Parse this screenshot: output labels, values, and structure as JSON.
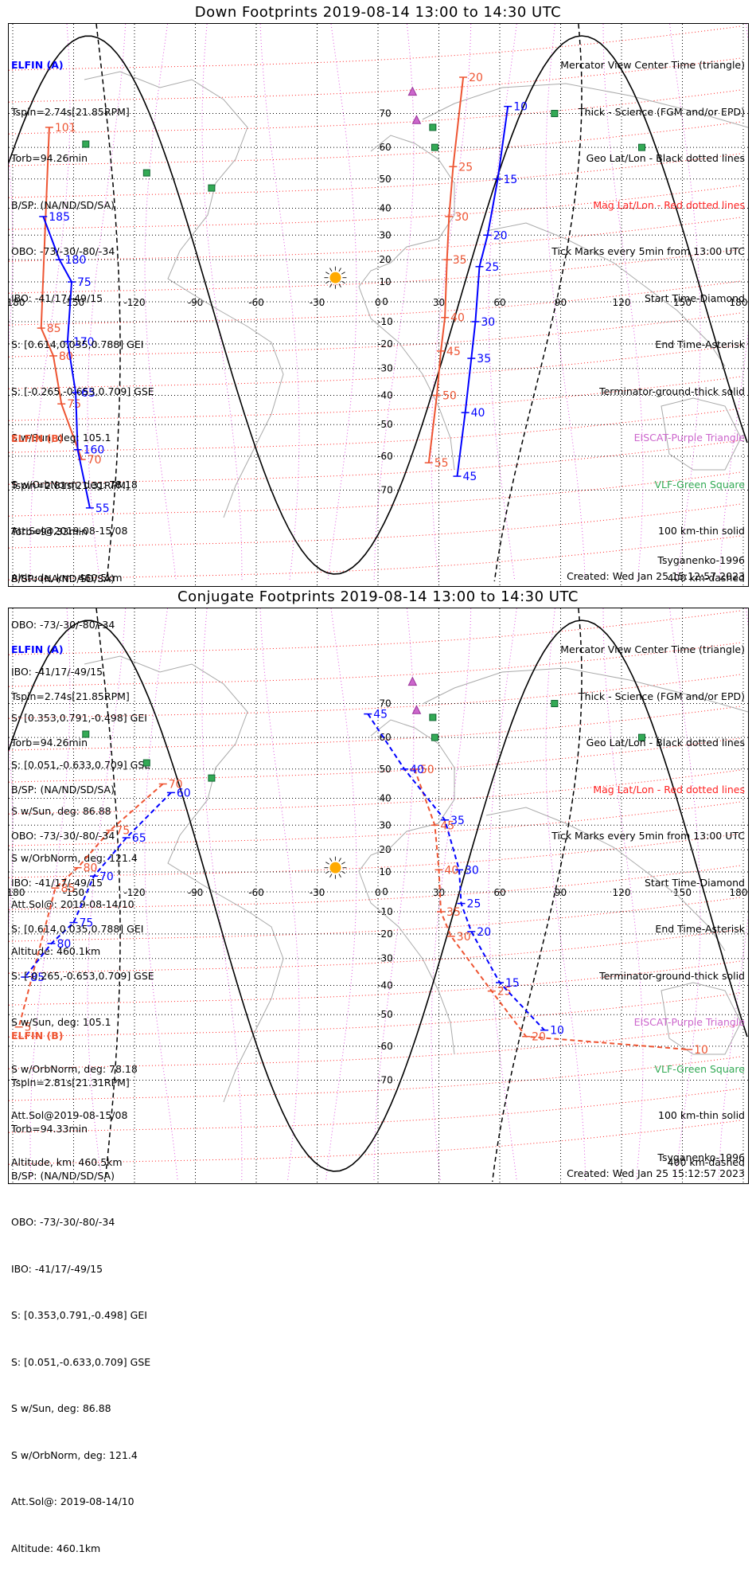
{
  "panels": [
    {
      "id": "down",
      "title": "Down Footprints 2019-08-14 13:00 to 14:30 UTC",
      "elfin_a": {
        "name": "ELFIN (A)",
        "lines": [
          "Tspin=2.74s[21.85RPM]",
          "Torb=94.26min",
          "B/SP: (NA/ND/SD/SA)",
          "OBO: -73/-30/-80/-34",
          "IBO: -41/17/-49/15",
          "S: [0.614,0.035,0.788] GEI",
          "S: [-0.265,-0.653,0.709] GSE",
          "S w/Sun, deg: 105.1",
          "S w/OrbNorm, deg: 78.18",
          "Att.Sol@2019-08-15/08",
          "Altitude, km: 460.5km"
        ]
      },
      "elfin_b": {
        "name": "ELFIN (B)",
        "lines": [
          "Tspin=2.81s[21.31RPM]",
          "Torb=94.33min",
          "B/SP: (NA/ND/SD/SA)",
          "OBO: -73/-30/-80/-34",
          "IBO: -41/17/-49/15",
          "S: [0.353,0.791,-0.498] GEI",
          "S: [0.051,-0.633,0.709] GSE",
          "S w/Sun, deg: 86.88",
          "S w/OrbNorm, deg: 121.4",
          "Att.Sol@: 2019-08-14/10",
          "Altitude: 460.1km"
        ]
      },
      "legend": [
        {
          "text": "Mercator View Center Time (triangle)",
          "color": "#000000"
        },
        {
          "text": "Thick - Science (FGM and/or EPD)",
          "color": "#000000"
        },
        {
          "text": "Geo Lat/Lon - Black dotted lines",
          "color": "#000000"
        },
        {
          "text": "Mag Lat/Lon - Red dotted lines",
          "color": "#ff2222"
        },
        {
          "text": "Tick Marks every 5min from 13:00 UTC",
          "color": "#000000"
        },
        {
          "text": "Start Time-Diamond",
          "color": "#000000"
        },
        {
          "text": "End Time-Asterisk",
          "color": "#000000"
        },
        {
          "text": "Terminator-ground-thick solid",
          "color": "#000000"
        },
        {
          "text": "EISCAT-Purple Triangle",
          "color": "#cc66cc"
        },
        {
          "text": "VLF-Green Square",
          "color": "#33aa55"
        },
        {
          "text": "100 km-thin solid",
          "color": "#000000"
        },
        {
          "text": "400 km-dashed",
          "color": "#000000"
        }
      ],
      "model": "Tsyganenko-1996",
      "created": "Created: Wed Jan 25 15:12:57 2023",
      "a_ticks": [
        {
          "label": "185",
          "lon": -165,
          "lat": 37
        },
        {
          "label": "180",
          "lon": -157,
          "lat": 20
        },
        {
          "label": "75",
          "lon": -151,
          "lat": 10
        },
        {
          "label": "170",
          "lon": -153,
          "lat": -19
        },
        {
          "label": "65",
          "lon": -149,
          "lat": -39
        },
        {
          "label": "160",
          "lon": -148,
          "lat": -58
        },
        {
          "label": "55",
          "lon": -142,
          "lat": -75
        },
        {
          "label": "10",
          "lon": 64,
          "lat": 72
        },
        {
          "label": "15",
          "lon": 59,
          "lat": 50
        },
        {
          "label": "20",
          "lon": 54,
          "lat": 30
        },
        {
          "label": "25",
          "lon": 50,
          "lat": 17
        },
        {
          "label": "30",
          "lon": 48,
          "lat": -10
        },
        {
          "label": "35",
          "lon": 46,
          "lat": -26
        },
        {
          "label": "40",
          "lon": 43,
          "lat": -46
        },
        {
          "label": "45",
          "lon": 39,
          "lat": -66
        }
      ],
      "b_ticks": [
        {
          "label": "20",
          "lon": 42,
          "lat": 80
        },
        {
          "label": "25",
          "lon": 37,
          "lat": 54
        },
        {
          "label": "30",
          "lon": 35,
          "lat": 37
        },
        {
          "label": "35",
          "lon": 34,
          "lat": 20
        },
        {
          "label": "40",
          "lon": 33,
          "lat": -8
        },
        {
          "label": "45",
          "lon": 31,
          "lat": -23
        },
        {
          "label": "50",
          "lon": 29,
          "lat": -40
        },
        {
          "label": "55",
          "lon": 25,
          "lat": -62
        },
        {
          "label": "101",
          "lon": -162,
          "lat": 66
        },
        {
          "label": "85",
          "lon": -166,
          "lat": -13
        },
        {
          "label": "80",
          "lon": -160,
          "lat": -25
        },
        {
          "label": "75",
          "lon": -156,
          "lat": -43
        },
        {
          "label": "70",
          "lon": -146,
          "lat": -61
        }
      ]
    },
    {
      "id": "conjugate",
      "title": "Conjugate Footprints 2019-08-14 13:00 to 14:30 UTC",
      "elfin_a": {
        "name": "ELFIN (A)",
        "lines": [
          "Tspin=2.74s[21.85RPM]",
          "Torb=94.26min",
          "B/SP: (NA/ND/SD/SA)",
          "OBO: -73/-30/-80/-34",
          "IBO: -41/17/-49/15",
          "S: [0.614,0.035,0.788] GEI",
          "S: [-0.265,-0.653,0.709] GSE",
          "S w/Sun, deg: 105.1",
          "S w/OrbNorm, deg: 78.18",
          "Att.Sol@2019-08-15/08",
          "Altitude, km: 460.5km"
        ]
      },
      "elfin_b": {
        "name": "ELFIN (B)",
        "lines": [
          "Tspin=2.81s[21.31RPM]",
          "Torb=94.33min",
          "B/SP: (NA/ND/SD/SA)",
          "OBO: -73/-30/-80/-34",
          "IBO: -41/17/-49/15",
          "S: [0.353,0.791,-0.498] GEI",
          "S: [0.051,-0.633,0.709] GSE",
          "S w/Sun, deg: 86.88",
          "S w/OrbNorm, deg: 121.4",
          "Att.Sol@: 2019-08-14/10",
          "Altitude: 460.1km"
        ]
      },
      "legend": [
        {
          "text": "Mercator View Center Time (triangle)",
          "color": "#000000"
        },
        {
          "text": "Thick - Science (FGM and/or EPD)",
          "color": "#000000"
        },
        {
          "text": "Geo Lat/Lon - Black dotted lines",
          "color": "#000000"
        },
        {
          "text": "Mag Lat/Lon - Red dotted lines",
          "color": "#ff2222"
        },
        {
          "text": "Tick Marks every 5min from 13:00 UTC",
          "color": "#000000"
        },
        {
          "text": "Start Time-Diamond",
          "color": "#000000"
        },
        {
          "text": "End Time-Asterisk",
          "color": "#000000"
        },
        {
          "text": "Terminator-ground-thick solid",
          "color": "#000000"
        },
        {
          "text": "EISCAT-Purple Triangle",
          "color": "#cc66cc"
        },
        {
          "text": "VLF-Green Square",
          "color": "#33aa55"
        },
        {
          "text": "100 km-thin solid",
          "color": "#000000"
        },
        {
          "text": "400 km-dashed",
          "color": "#000000"
        }
      ],
      "model": "Tsyganenko-1996",
      "created": "Created: Wed Jan 25 15:12:57 2023",
      "a_ticks": [
        {
          "label": "45",
          "lon": -5,
          "lat": 67
        },
        {
          "label": "40",
          "lon": 13,
          "lat": 50
        },
        {
          "label": "35",
          "lon": 33,
          "lat": 32
        },
        {
          "label": "30",
          "lon": 40,
          "lat": 11
        },
        {
          "label": "25",
          "lon": 41,
          "lat": -6
        },
        {
          "label": "20",
          "lon": 46,
          "lat": -19
        },
        {
          "label": "15",
          "lon": 60,
          "lat": -39
        },
        {
          "label": "10",
          "lon": 82,
          "lat": -55
        },
        {
          "label": "60",
          "lon": -102,
          "lat": 42
        },
        {
          "label": "65",
          "lon": -124,
          "lat": 25
        },
        {
          "label": "70",
          "lon": -140,
          "lat": 8
        },
        {
          "label": "75",
          "lon": -150,
          "lat": -15
        },
        {
          "label": "80",
          "lon": -161,
          "lat": -24
        },
        {
          "label": "85",
          "lon": -174,
          "lat": -37
        }
      ],
      "b_ticks": [
        {
          "label": "50",
          "lon": 18,
          "lat": 50
        },
        {
          "label": "45",
          "lon": 28,
          "lat": 30
        },
        {
          "label": "40",
          "lon": 30,
          "lat": 11
        },
        {
          "label": "35",
          "lon": 31,
          "lat": -10
        },
        {
          "label": "30",
          "lon": 36,
          "lat": -21
        },
        {
          "label": "25",
          "lon": 56,
          "lat": -42
        },
        {
          "label": "20",
          "lon": 73,
          "lat": -57
        },
        {
          "label": "10",
          "lon": 153,
          "lat": -61
        },
        {
          "label": "70",
          "lon": -106,
          "lat": 45
        },
        {
          "label": "75",
          "lon": -132,
          "lat": 28
        },
        {
          "label": "80",
          "lon": -148,
          "lat": 12
        },
        {
          "label": "85",
          "lon": -159,
          "lat": 2
        },
        {
          "label": "5",
          "lon": -177,
          "lat": -54
        }
      ]
    }
  ],
  "map": {
    "lon_ticks": [
      "180",
      "-150",
      "-120",
      "-90",
      "-60",
      "-30",
      "0",
      "30",
      "60",
      "90",
      "120",
      "150",
      "180"
    ],
    "lat_ticks": [
      "70",
      "60",
      "50",
      "40",
      "30",
      "20",
      "10",
      "0",
      "-10",
      "-20",
      "-30",
      "-40",
      "-50",
      "-60",
      "-70"
    ]
  }
}
